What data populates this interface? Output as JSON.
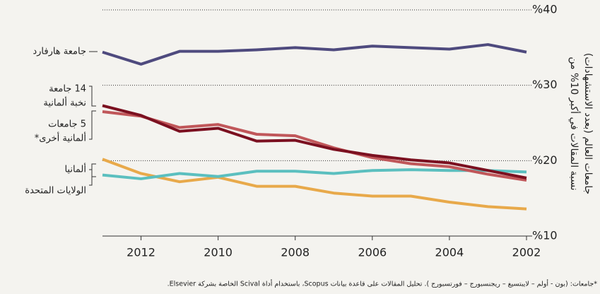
{
  "chart_data": {
    "type": "line",
    "y_axis_label": [
      "نسبة المقالات في أكبر 10% من",
      "جامعات العالم (بعدد الاستشهادات)"
    ],
    "footnote": "*جامعات: (بون - أولم – لايبتسيغ – ريجنسبورج – فورتسبورج ). تحليل المقالات على قاعدة بيانات Scopus، باستخدام أداة Scival الخاصة بشركة Elsevier.",
    "x": [
      2013,
      2012,
      2011,
      2010,
      2009,
      2008,
      2007,
      2006,
      2005,
      2004,
      2003,
      2002
    ],
    "xlim": [
      2002,
      2013
    ],
    "x_reversed": true,
    "xticks": [
      2002,
      2004,
      2006,
      2008,
      2010,
      2012
    ],
    "ylim": [
      10,
      40
    ],
    "yticks": [
      {
        "value": 10,
        "label": "%10"
      },
      {
        "value": 20,
        "label": "%20"
      },
      {
        "value": 30,
        "label": "%30"
      },
      {
        "value": 40,
        "label": "%40"
      }
    ],
    "grid": true,
    "series": [
      {
        "name": [
          "جامعة هارفارد"
        ],
        "color": "#4e4a7e",
        "values": [
          34.4,
          32.8,
          34.5,
          34.5,
          34.7,
          35.0,
          34.7,
          35.2,
          35.0,
          34.8,
          35.4,
          34.4
        ]
      },
      {
        "name": [
          "الولايات المتحدة"
        ],
        "color": "#e8a94a",
        "values": [
          20.2,
          18.3,
          17.2,
          17.8,
          16.6,
          16.6,
          15.7,
          15.3,
          15.3,
          14.5,
          13.9,
          13.6
        ]
      },
      {
        "name": [
          "ألمانيا"
        ],
        "color": "#5bbfbf",
        "values": [
          18.1,
          17.6,
          18.3,
          17.9,
          18.6,
          18.6,
          18.3,
          18.7,
          18.8,
          18.7,
          18.7,
          18.5
        ]
      },
      {
        "name": [
          "5 جامعات",
          "ألمانية أخرى*"
        ],
        "color": "#c0575a",
        "values": [
          26.5,
          25.9,
          24.4,
          24.8,
          23.5,
          23.3,
          21.7,
          20.4,
          19.6,
          19.2,
          18.2,
          17.4
        ]
      },
      {
        "name": [
          "14 جامعة",
          "نخبة ألمانية"
        ],
        "color": "#7b1020",
        "values": [
          27.3,
          26.0,
          23.9,
          24.3,
          22.6,
          22.7,
          21.5,
          20.7,
          20.1,
          19.7,
          18.7,
          17.7
        ]
      }
    ]
  }
}
